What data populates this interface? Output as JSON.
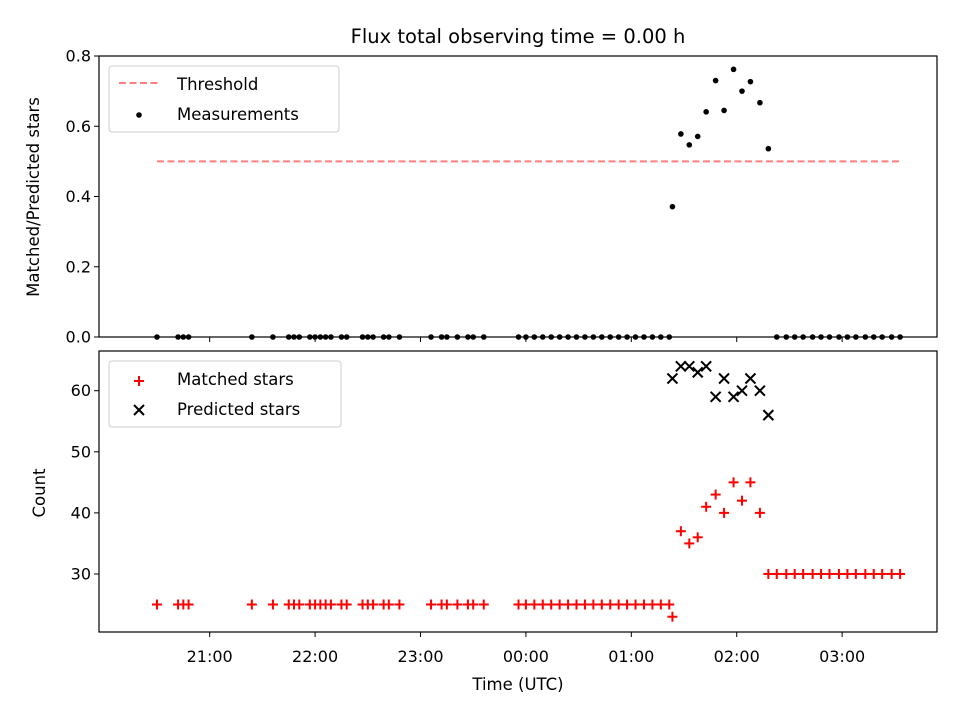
{
  "chart_data": [
    {
      "type": "scatter",
      "title": "Flux total observing time = 0.00 h",
      "xlabel": "",
      "ylabel": "Matched/Predicted stars",
      "ylim": [
        0,
        0.8
      ],
      "yticks": [
        "0.0",
        "0.2",
        "0.4",
        "0.6",
        "0.8"
      ],
      "x_ticks_hidden": true,
      "x_unit": "hours since 00:00 UTC",
      "legend_position": "upper left",
      "threshold": {
        "name": "Threshold",
        "value": 0.5,
        "x_start": -3.5,
        "x_end": 3.55,
        "color": "#ff7f7f",
        "style": "dashed"
      },
      "series": [
        {
          "name": "Measurements",
          "marker": "dot",
          "color": "#000000",
          "x": [
            -3.5,
            -3.3,
            -3.25,
            -3.2,
            -2.6,
            -2.4,
            -2.25,
            -2.2,
            -2.15,
            -2.05,
            -2.0,
            -1.95,
            -1.9,
            -1.85,
            -1.75,
            -1.7,
            -1.55,
            -1.5,
            -1.45,
            -1.35,
            -1.3,
            -1.2,
            -0.9,
            -0.8,
            -0.75,
            -0.65,
            -0.55,
            -0.5,
            -0.4,
            -0.07,
            0.0,
            0.08,
            0.16,
            0.24,
            0.32,
            0.4,
            0.48,
            0.56,
            0.64,
            0.72,
            0.8,
            0.88,
            0.96,
            1.04,
            1.12,
            1.2,
            1.28,
            1.36,
            1.39,
            1.47,
            1.55,
            1.63,
            1.71,
            1.8,
            1.88,
            1.97,
            2.05,
            2.13,
            2.22,
            2.3,
            2.38,
            2.47,
            2.55,
            2.63,
            2.72,
            2.8,
            2.88,
            2.97,
            3.05,
            3.13,
            3.22,
            3.3,
            3.38,
            3.47,
            3.55
          ],
          "values": [
            0,
            0,
            0,
            0,
            0,
            0,
            0,
            0,
            0,
            0,
            0,
            0,
            0,
            0,
            0,
            0,
            0,
            0,
            0,
            0,
            0,
            0,
            0,
            0,
            0,
            0,
            0,
            0,
            0,
            0,
            0,
            0,
            0,
            0,
            0,
            0,
            0,
            0,
            0,
            0,
            0,
            0,
            0,
            0,
            0,
            0,
            0,
            0,
            0.371,
            0.578,
            0.547,
            0.571,
            0.641,
            0.73,
            0.645,
            0.762,
            0.7,
            0.727,
            0.667,
            0.536,
            0,
            0,
            0,
            0,
            0,
            0,
            0,
            0,
            0,
            0,
            0,
            0,
            0,
            0,
            0
          ]
        }
      ]
    },
    {
      "type": "scatter",
      "xlabel": "Time (UTC)",
      "ylabel": "Count",
      "ylim": [
        20.5,
        66.5
      ],
      "yticks": [
        "30",
        "40",
        "50",
        "60"
      ],
      "xlim": [
        -4.05,
        3.9
      ],
      "x_unit": "hours since 00:00 UTC",
      "xticks": [
        "21:00",
        "22:00",
        "23:00",
        "00:00",
        "01:00",
        "02:00",
        "03:00"
      ],
      "legend_position": "upper left",
      "series": [
        {
          "name": "Matched stars",
          "marker": "plus",
          "color": "#ff0000",
          "x": [
            -3.5,
            -3.3,
            -3.25,
            -3.2,
            -2.6,
            -2.4,
            -2.25,
            -2.2,
            -2.15,
            -2.05,
            -2.0,
            -1.95,
            -1.9,
            -1.85,
            -1.75,
            -1.7,
            -1.55,
            -1.5,
            -1.45,
            -1.35,
            -1.3,
            -1.2,
            -0.9,
            -0.8,
            -0.75,
            -0.65,
            -0.55,
            -0.5,
            -0.4,
            -0.07,
            0.0,
            0.08,
            0.16,
            0.24,
            0.32,
            0.4,
            0.48,
            0.56,
            0.64,
            0.72,
            0.8,
            0.88,
            0.96,
            1.04,
            1.12,
            1.2,
            1.28,
            1.36,
            1.39,
            1.47,
            1.55,
            1.63,
            1.71,
            1.8,
            1.88,
            1.97,
            2.05,
            2.13,
            2.22,
            2.3,
            2.38,
            2.47,
            2.55,
            2.63,
            2.72,
            2.8,
            2.88,
            2.97,
            3.05,
            3.13,
            3.22,
            3.3,
            3.38,
            3.47,
            3.55
          ],
          "values": [
            25,
            25,
            25,
            25,
            25,
            25,
            25,
            25,
            25,
            25,
            25,
            25,
            25,
            25,
            25,
            25,
            25,
            25,
            25,
            25,
            25,
            25,
            25,
            25,
            25,
            25,
            25,
            25,
            25,
            25,
            25,
            25,
            25,
            25,
            25,
            25,
            25,
            25,
            25,
            25,
            25,
            25,
            25,
            25,
            25,
            25,
            25,
            25,
            23,
            37,
            35,
            36,
            41,
            43,
            40,
            45,
            42,
            45,
            40,
            30,
            30,
            30,
            30,
            30,
            30,
            30,
            30,
            30,
            30,
            30,
            30,
            30,
            30,
            30,
            30
          ]
        },
        {
          "name": "Predicted stars",
          "marker": "x",
          "color": "#000000",
          "x": [
            1.39,
            1.47,
            1.55,
            1.63,
            1.71,
            1.8,
            1.88,
            1.97,
            2.05,
            2.13,
            2.22,
            2.3
          ],
          "values": [
            62,
            64,
            64,
            63,
            64,
            59,
            62,
            59,
            60,
            62,
            60,
            56
          ]
        }
      ]
    }
  ]
}
